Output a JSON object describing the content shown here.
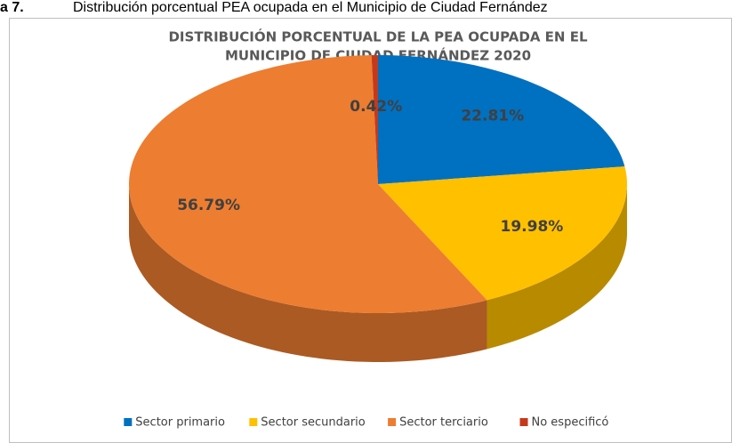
{
  "caption": {
    "number": "a 7.",
    "text": "Distribución porcentual PEA ocupada en el Municipio de Ciudad Fernández"
  },
  "chart_data": {
    "type": "pie3d",
    "title": [
      "DISTRIBUCIÓN PORCENTUAL DE LA PEA OCUPADA EN EL",
      "MUNICIPIO DE CIUDAD FERNÁNDEZ 2020"
    ],
    "categories": [
      "Sector primario",
      "Sector secundario",
      "Sector terciario",
      "No especificó"
    ],
    "values": [
      22.81,
      19.98,
      56.79,
      0.42
    ],
    "value_labels": [
      "22.81%",
      "19.98%",
      "56.79%",
      "0.42%"
    ],
    "colors": [
      "#0070c0",
      "#ffc000",
      "#ed7d31",
      "#c5391b"
    ],
    "legend": "bottom"
  }
}
